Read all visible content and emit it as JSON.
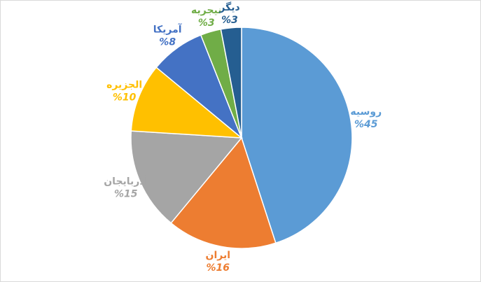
{
  "chart_data": {
    "type": "pie",
    "categories": [
      "روسیه",
      "ایران",
      "آذربایجان",
      "الجزیره",
      "آمریکا",
      "نیجریه",
      "دیگر"
    ],
    "values": [
      45,
      16,
      15,
      10,
      8,
      3,
      3
    ],
    "value_labels": [
      "%45",
      "%16",
      "%15",
      "%10",
      "%8",
      "%3",
      "%3"
    ],
    "colors": [
      "#5b9bd5",
      "#ed7d31",
      "#a5a5a5",
      "#ffc000",
      "#4472c4",
      "#70ad47",
      "#255e91"
    ],
    "label_colors": [
      "#5b9bd5",
      "#ed7d31",
      "#a5a5a5",
      "#ffc000",
      "#4472c4",
      "#70ad47",
      "#255e91"
    ]
  }
}
